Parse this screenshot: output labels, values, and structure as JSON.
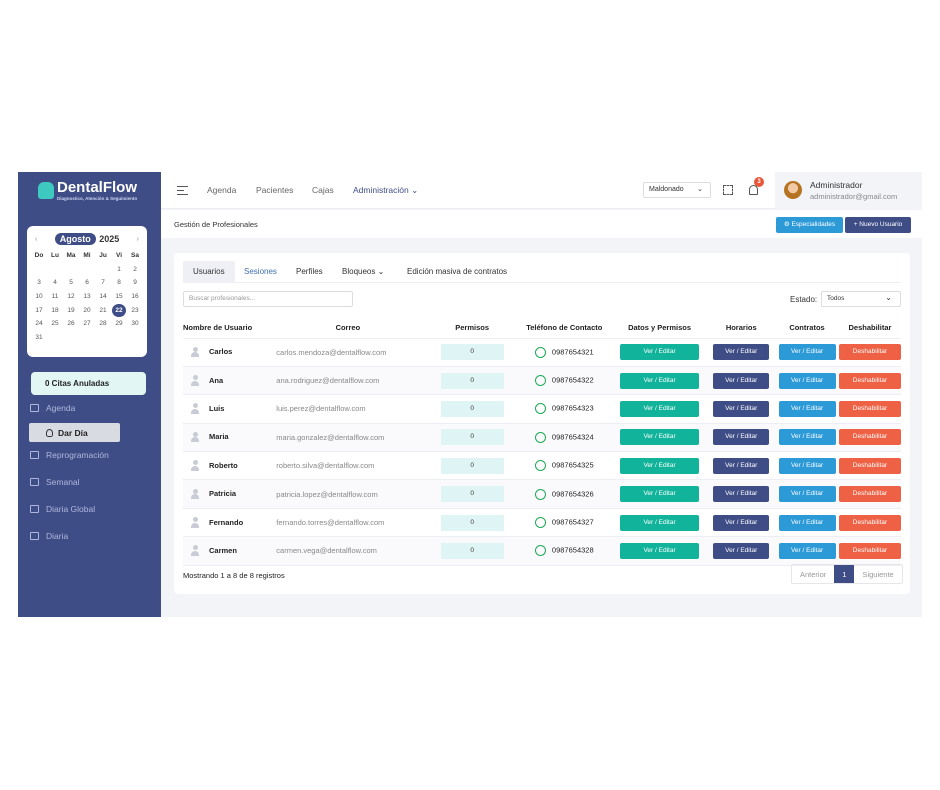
{
  "brand": {
    "name": "DentalFlow",
    "tagline": "Diagnostico, Atención & Seguimiento"
  },
  "calendar": {
    "month": "Agosto",
    "year": "2025",
    "prev": "‹",
    "next": "›",
    "weekdays": [
      "Do",
      "Lu",
      "Ma",
      "Mi",
      "Ju",
      "Vi",
      "Sa"
    ],
    "selected_day": "22",
    "days": [
      "",
      "",
      "",
      "",
      "",
      "1",
      "2",
      "3",
      "4",
      "5",
      "6",
      "7",
      "8",
      "9",
      "10",
      "11",
      "12",
      "13",
      "14",
      "15",
      "16",
      "17",
      "18",
      "19",
      "20",
      "21",
      "22",
      "23",
      "24",
      "25",
      "26",
      "27",
      "28",
      "29",
      "30",
      "31"
    ]
  },
  "sidebar": {
    "citas": "0 Citas Anuladas",
    "items": [
      {
        "label": "Agenda",
        "icon": "calendar-icon"
      },
      {
        "label": "Dar Día",
        "icon": "lightbulb-icon"
      },
      {
        "label": "Reprogramación",
        "icon": "calendar-clock-icon"
      },
      {
        "label": "Semanal",
        "icon": "calendar-week-icon"
      },
      {
        "label": "Diaria Global",
        "icon": "list-filter-icon"
      },
      {
        "label": "Diaria",
        "icon": "clipboard-icon"
      }
    ]
  },
  "topbar": {
    "menu": [
      "Agenda",
      "Pacientes",
      "Cajas",
      "Administración"
    ],
    "sucursal": "Maldonado",
    "notifications": "3",
    "user": {
      "name": "Administrador",
      "email": "administrador@gmail.com"
    }
  },
  "subbar": {
    "title": "Gestión de Profesionales",
    "especialidades": "⚙ Especialidades",
    "nuevo": "+ Nuevo Usuario"
  },
  "tabs": [
    "Usuarios",
    "Sesiones",
    "Perfiles",
    "Bloqueos",
    "Edición masiva de contratos"
  ],
  "search_placeholder": "Buscar profesionales...",
  "estado": {
    "label": "Estado:",
    "value": "Todos"
  },
  "table": {
    "headers": [
      "Nombre de Usuario",
      "Correo",
      "Permisos",
      "Teléfono de Contacto",
      "Datos y Permisos",
      "Horarios",
      "Contratos",
      "Deshabilitar"
    ],
    "action_label": "Ver / Editar",
    "disable_label": "Deshabilitar",
    "rows": [
      {
        "name": "Carlos",
        "email": "carlos.mendoza@dentalflow.com",
        "permisos": "0",
        "phone": "0987654321"
      },
      {
        "name": "Ana",
        "email": "ana.rodriguez@dentalflow.com",
        "permisos": "0",
        "phone": "0987654322"
      },
      {
        "name": "Luis",
        "email": "luis.perez@dentalflow.com",
        "permisos": "0",
        "phone": "0987654323"
      },
      {
        "name": "Maria",
        "email": "maria.gonzalez@dentalflow.com",
        "permisos": "0",
        "phone": "0987654324"
      },
      {
        "name": "Roberto",
        "email": "roberto.silva@dentalflow.com",
        "permisos": "0",
        "phone": "0987654325"
      },
      {
        "name": "Patricia",
        "email": "patricia.lopez@dentalflow.com",
        "permisos": "0",
        "phone": "0987654326"
      },
      {
        "name": "Fernando",
        "email": "fernando.torres@dentalflow.com",
        "permisos": "0",
        "phone": "0987654327"
      },
      {
        "name": "Carmen",
        "email": "carmen.vega@dentalflow.com",
        "permisos": "0",
        "phone": "0987654328"
      }
    ]
  },
  "footer": {
    "info": "Mostrando 1 a 8 de 8 registros",
    "prev": "Anterior",
    "page": "1",
    "next": "Siguiente"
  },
  "colors": {
    "primary": "#3f4d87",
    "teal": "#12b39b",
    "blue": "#2d9ad8",
    "danger": "#ee6145"
  }
}
